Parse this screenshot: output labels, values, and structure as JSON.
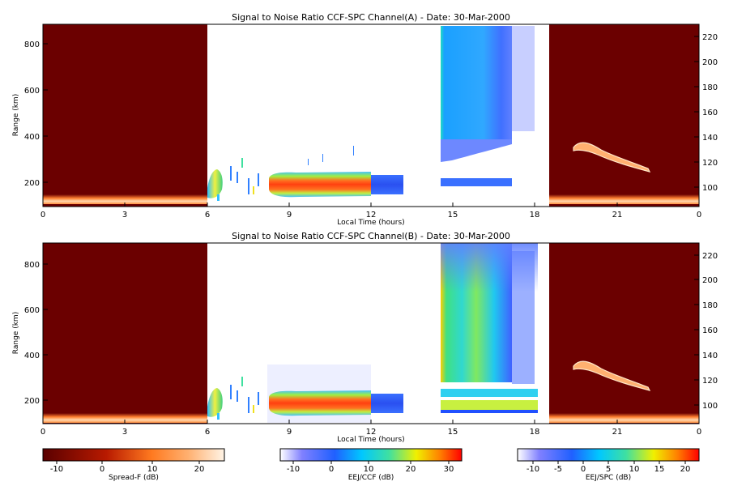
{
  "chart_data": [
    {
      "type": "heatmap",
      "title": "Signal to Noise Ratio CCF-SPC Channel(A) - Date: 30-Mar-2000",
      "xlabel": "Local Time (hours)",
      "ylabel": "Range (km)",
      "xlim": [
        0,
        24
      ],
      "ylim": [
        80,
        880
      ],
      "y2lim": [
        88,
        232
      ],
      "xticks": [
        "0",
        "3",
        "6",
        "9",
        "12",
        "15",
        "18",
        "21",
        "0"
      ],
      "yticks": [
        "200",
        "400",
        "600",
        "800"
      ],
      "y2ticks": [
        "100",
        "120",
        "140",
        "160",
        "180",
        "200",
        "220"
      ],
      "regions": [
        {
          "name": "Spread-F (night)",
          "x": [
            0,
            6
          ],
          "background_db": -10,
          "bottom_echo_range_km": [
            95,
            130
          ]
        },
        {
          "name": "EEJ/CCF blob",
          "x": [
            6.0,
            6.7
          ],
          "y": [
            140,
            260
          ],
          "peak_db": 12
        },
        {
          "name": "EEJ/CCF main band",
          "x": [
            8.3,
            12.0
          ],
          "y": [
            150,
            240
          ],
          "peak_db": 30
        },
        {
          "name": "EEJ/CCF band",
          "x": [
            12.0,
            13.2
          ],
          "y": [
            160,
            230
          ],
          "peak_db": 0
        },
        {
          "name": "EEJ/SPC upper",
          "x": [
            14.5,
            17.3
          ],
          "y": [
            380,
            880
          ],
          "peak_db": 0
        },
        {
          "name": "EEJ/SPC lower",
          "x": [
            14.5,
            17.3
          ],
          "y": [
            185,
            215
          ],
          "peak_db": 0
        },
        {
          "name": "Spread-F (evening)",
          "x": [
            18.5,
            24
          ],
          "background_db": -10,
          "plume_range_km": [
            250,
            370
          ]
        }
      ]
    },
    {
      "type": "heatmap",
      "title": "Signal to Noise Ratio CCF-SPC Channel(B) - Date: 30-Mar-2000",
      "xlabel": "Local Time (hours)",
      "ylabel": "Range (km)",
      "xlim": [
        0,
        24
      ],
      "ylim": [
        80,
        880
      ],
      "y2lim": [
        88,
        232
      ],
      "xticks": [
        "0",
        "3",
        "6",
        "9",
        "12",
        "15",
        "18",
        "21",
        "0"
      ],
      "yticks": [
        "200",
        "400",
        "600",
        "800"
      ],
      "y2ticks": [
        "100",
        "120",
        "140",
        "160",
        "180",
        "200",
        "220"
      ],
      "regions": [
        {
          "name": "Spread-F (night)",
          "x": [
            0,
            6
          ],
          "background_db": -10,
          "bottom_echo_range_km": [
            95,
            130
          ]
        },
        {
          "name": "EEJ/CCF blob",
          "x": [
            6.0,
            6.7
          ],
          "y": [
            140,
            260
          ],
          "peak_db": 12
        },
        {
          "name": "EEJ/CCF main band",
          "x": [
            8.3,
            12.0
          ],
          "y": [
            150,
            240
          ],
          "peak_db": 30
        },
        {
          "name": "EEJ/CCF band",
          "x": [
            12.0,
            13.2
          ],
          "y": [
            160,
            230
          ],
          "peak_db": 0
        },
        {
          "name": "EEJ/SPC full column",
          "x": [
            14.5,
            17.3
          ],
          "y": [
            170,
            880
          ],
          "peak_db": 10
        },
        {
          "name": "Spread-F (evening)",
          "x": [
            18.5,
            24
          ],
          "background_db": -10,
          "plume_range_km": [
            250,
            370
          ]
        }
      ]
    }
  ],
  "colorbars": [
    {
      "label": "Spread-F (dB)",
      "ticks": [
        "-10",
        "0",
        "10",
        "20"
      ],
      "range": [
        -14,
        26
      ]
    },
    {
      "label": "EEJ/CCF (dB)",
      "ticks": [
        "-10",
        "0",
        "10",
        "20",
        "30"
      ],
      "range": [
        -15,
        33
      ]
    },
    {
      "label": "EEJ/SPC (dB)",
      "ticks": [
        "-10",
        "-5",
        "0",
        "5",
        "10",
        "15",
        "20"
      ],
      "range": [
        -13,
        23
      ]
    }
  ],
  "colors": {
    "spreadf_bg": "#6b0000",
    "spreadf_hi": "#ffd9a0",
    "eej_hot": "#ff3a10",
    "eej_cold": "#3a6cff"
  }
}
